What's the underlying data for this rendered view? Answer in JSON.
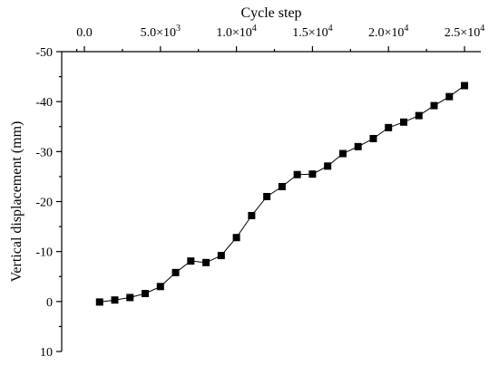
{
  "chart_data": {
    "type": "line",
    "xlabel": "Cycle step",
    "ylabel": "Vertical displacement (mm)",
    "xlim": [
      -1000,
      25500
    ],
    "ylim": [
      -50,
      10
    ],
    "y_axis_inverted": true,
    "x_axis_position": "top",
    "grid": false,
    "legend": "none",
    "marker": "square",
    "x_ticks": [
      {
        "value": 0,
        "label": "0.0"
      },
      {
        "value": 5000,
        "label": "5.0×10",
        "exp": "3"
      },
      {
        "value": 10000,
        "label": "1.0×10",
        "exp": "4"
      },
      {
        "value": 15000,
        "label": "1.5×10",
        "exp": "4"
      },
      {
        "value": 20000,
        "label": "2.0×10",
        "exp": "4"
      },
      {
        "value": 25000,
        "label": "2.5×10",
        "exp": "4"
      }
    ],
    "y_ticks": [
      {
        "value": -50,
        "label": "-50"
      },
      {
        "value": -40,
        "label": "-40"
      },
      {
        "value": -30,
        "label": "-30"
      },
      {
        "value": -20,
        "label": "-20"
      },
      {
        "value": -10,
        "label": "-10"
      },
      {
        "value": 0,
        "label": "0"
      },
      {
        "value": 10,
        "label": "10"
      }
    ],
    "series": [
      {
        "x": [
          1000,
          2000,
          3000,
          4000,
          5000,
          6000,
          7000,
          8000,
          9000,
          10000,
          11000,
          12000,
          13000,
          14000,
          15000,
          16000,
          17000,
          18000,
          19000,
          20000,
          21000,
          22000,
          23000,
          24000,
          25000
        ],
        "y": [
          0.1,
          -0.3,
          -0.8,
          -1.6,
          -3.0,
          -5.8,
          -8.1,
          -7.8,
          -9.2,
          -12.8,
          -17.2,
          -21.0,
          -23.0,
          -25.4,
          -25.5,
          -27.1,
          -29.6,
          -31.0,
          -32.6,
          -34.8,
          -35.9,
          -37.2,
          -39.2,
          -41.0,
          -43.2
        ]
      }
    ]
  }
}
